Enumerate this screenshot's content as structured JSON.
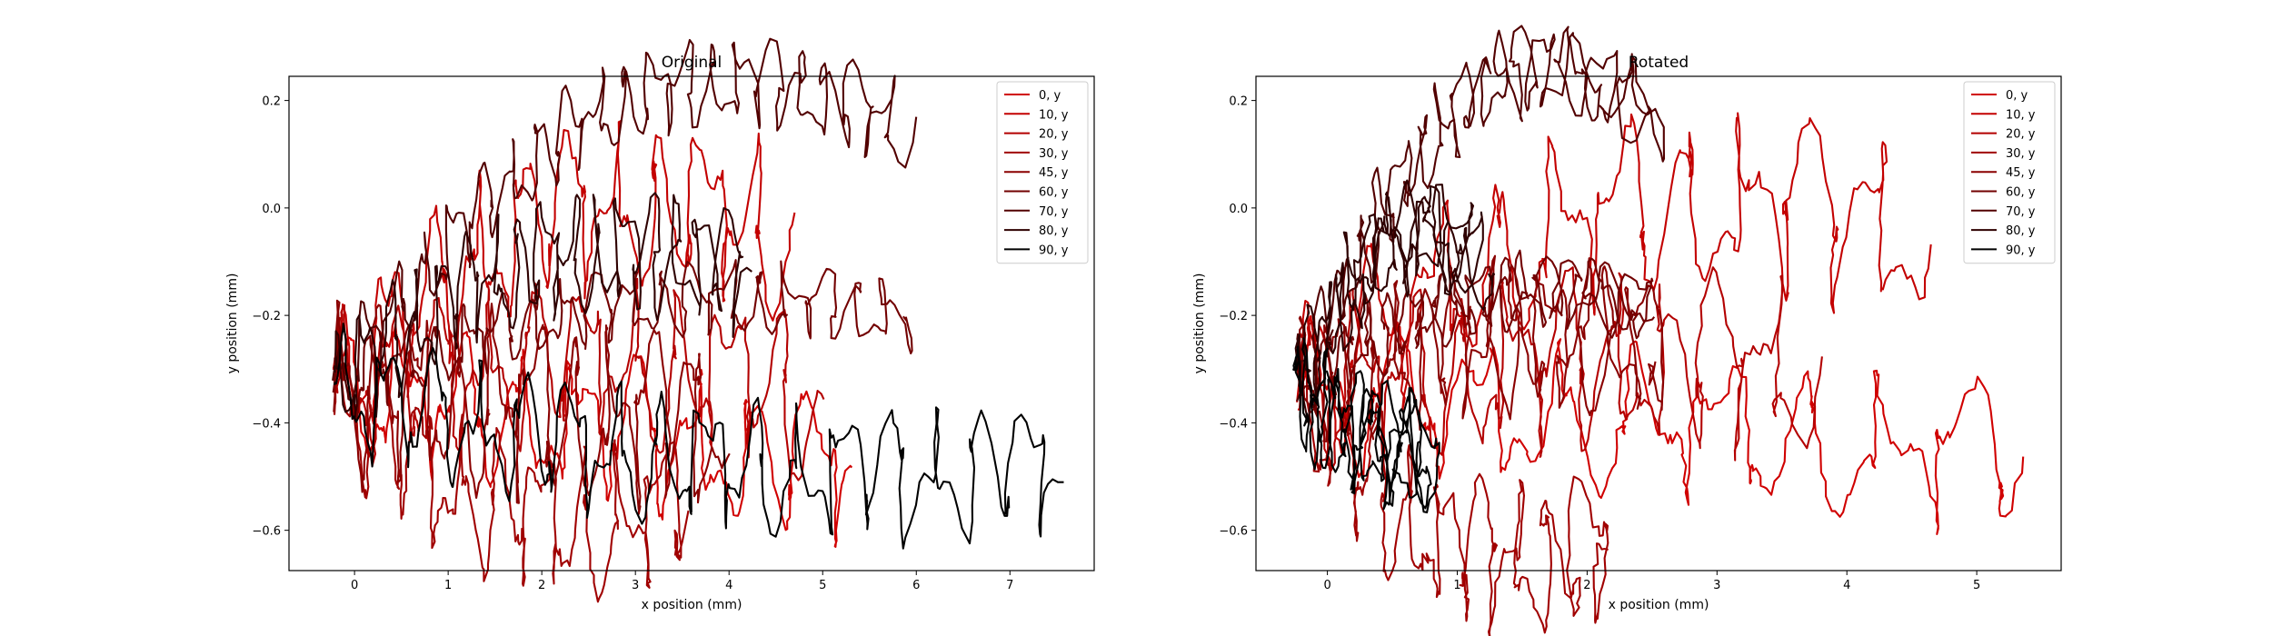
{
  "chart_data": [
    {
      "type": "line",
      "title": "Original",
      "xlabel": "x position (mm)",
      "ylabel": "y position (mm)",
      "xlim": [
        -0.7,
        7.9
      ],
      "ylim": [
        -0.675,
        0.245
      ],
      "xticks": [
        "0",
        "1",
        "2",
        "3",
        "4",
        "5",
        "6",
        "7"
      ],
      "yticks": [
        "0.2",
        "0.0",
        "−0.2",
        "−0.4",
        "−0.6"
      ],
      "grid": false,
      "legend": "top-right",
      "series": [
        {
          "name": "0, y",
          "color": "#d00000",
          "end": [
            5.35,
            -0.5
          ],
          "rise": 0.02,
          "amp": 0.1,
          "cycles": 9,
          "seed": 1
        },
        {
          "name": "10, y",
          "color": "#c30000",
          "end": [
            4.6,
            -0.05
          ],
          "rise": 0.3,
          "amp": 0.11,
          "cycles": 10,
          "seed": 2
        },
        {
          "name": "20, y",
          "color": "#b30000",
          "end": [
            4.9,
            -0.35
          ],
          "rise": 0.1,
          "amp": 0.11,
          "cycles": 10,
          "seed": 3
        },
        {
          "name": "30, y",
          "color": "#a00000",
          "end": [
            3.6,
            -0.55
          ],
          "rise": -0.2,
          "amp": 0.1,
          "cycles": 9,
          "seed": 4
        },
        {
          "name": "45, y",
          "color": "#8a0000",
          "end": [
            3.9,
            -0.4
          ],
          "rise": 0.0,
          "amp": 0.12,
          "cycles": 10,
          "seed": 5
        },
        {
          "name": "60, y",
          "color": "#720000",
          "end": [
            5.95,
            -0.2
          ],
          "rise": 0.15,
          "amp": 0.05,
          "cycles": 18,
          "seed": 6
        },
        {
          "name": "70, y",
          "color": "#520000",
          "end": [
            5.9,
            0.15
          ],
          "rise": 0.48,
          "amp": 0.06,
          "cycles": 20,
          "seed": 7
        },
        {
          "name": "80, y",
          "color": "#2e0000",
          "end": [
            4.2,
            -0.12
          ],
          "rise": 0.22,
          "amp": 0.08,
          "cycles": 16,
          "seed": 8
        },
        {
          "name": "90, y",
          "color": "#000000",
          "end": [
            7.55,
            -0.49
          ],
          "rise": -0.1,
          "amp": 0.09,
          "cycles": 16,
          "seed": 9
        }
      ]
    },
    {
      "type": "line",
      "title": "Rotated",
      "xlabel": "x position (mm)",
      "ylabel": "y position (mm)",
      "xlim": [
        -0.55,
        5.65
      ],
      "ylim": [
        -0.675,
        0.245
      ],
      "xticks": [
        "0",
        "1",
        "2",
        "3",
        "4",
        "5"
      ],
      "yticks": [
        "0.2",
        "0.0",
        "−0.2",
        "−0.4",
        "−0.6"
      ],
      "grid": false,
      "legend": "top-right",
      "series": [
        {
          "name": "0, y",
          "color": "#d00000",
          "end": [
            5.4,
            -0.47
          ],
          "rise": 0.0,
          "amp": 0.1,
          "cycles": 9,
          "seed": 11
        },
        {
          "name": "10, y",
          "color": "#c30000",
          "end": [
            4.55,
            -0.05
          ],
          "rise": 0.3,
          "amp": 0.12,
          "cycles": 10,
          "seed": 12
        },
        {
          "name": "20, y",
          "color": "#b30000",
          "end": [
            3.7,
            -0.3
          ],
          "rise": 0.05,
          "amp": 0.12,
          "cycles": 10,
          "seed": 13
        },
        {
          "name": "30, y",
          "color": "#a00000",
          "end": [
            2.2,
            -0.62
          ],
          "rise": -0.25,
          "amp": 0.1,
          "cycles": 9,
          "seed": 14
        },
        {
          "name": "45, y",
          "color": "#8a0000",
          "end": [
            2.6,
            -0.25
          ],
          "rise": 0.08,
          "amp": 0.1,
          "cycles": 12,
          "seed": 15
        },
        {
          "name": "60, y",
          "color": "#720000",
          "end": [
            2.5,
            -0.18
          ],
          "rise": 0.15,
          "amp": 0.05,
          "cycles": 16,
          "seed": 16
        },
        {
          "name": "70, y",
          "color": "#520000",
          "end": [
            2.55,
            0.17
          ],
          "rise": 0.5,
          "amp": 0.06,
          "cycles": 18,
          "seed": 17
        },
        {
          "name": "80, y",
          "color": "#2e0000",
          "end": [
            1.2,
            -0.1
          ],
          "rise": 0.25,
          "amp": 0.07,
          "cycles": 14,
          "seed": 18
        },
        {
          "name": "90, y",
          "color": "#000000",
          "end": [
            0.8,
            -0.45
          ],
          "rise": -0.05,
          "amp": 0.08,
          "cycles": 12,
          "seed": 19
        }
      ]
    }
  ]
}
